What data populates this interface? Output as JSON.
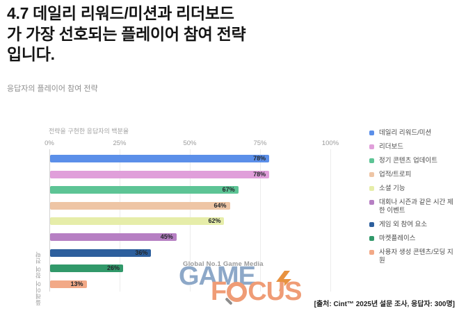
{
  "header": {
    "title_lines": [
      "4.7 데일리 리워드/미션과 리더보드",
      "가 가장 선호되는 플레이어 참여 전략",
      "입니다."
    ],
    "subtitle": "응답자의 플레이어 참여 전략"
  },
  "chart_data": {
    "type": "bar",
    "orientation": "horizontal",
    "title": "응답자의 플레이어 참여 전략",
    "xlabel": "전략을 구현한 응답자의 백분율",
    "ylabel": "플레이어 참여 전략",
    "xlim": [
      0,
      100
    ],
    "x_ticks": [
      "0%",
      "25%",
      "50%",
      "75%",
      "100%"
    ],
    "grid": true,
    "legend_position": "right",
    "categories": [
      "데일리 리워드/미션",
      "리더보드",
      "정기 콘텐츠 업데이트",
      "업적/트로피",
      "소셜 기능",
      "대회나 시즌과 같은 시간 제한 이벤트",
      "게임 외 참여 요소",
      "마켓플레이스",
      "사용자 생성 콘텐츠/모딩 지원"
    ],
    "values": [
      78,
      78,
      67,
      64,
      62,
      45,
      36,
      26,
      13
    ],
    "value_labels": [
      "78%",
      "78%",
      "67%",
      "64%",
      "62%",
      "45%",
      "36%",
      "26%",
      "13%"
    ],
    "colors": [
      "#5b8fe9",
      "#e09fda",
      "#5dc495",
      "#eec5a5",
      "#e6eda9",
      "#b67fc3",
      "#2d5f9d",
      "#31996a",
      "#f2a987"
    ]
  },
  "watermark": {
    "tagline": "Global No.1 Game Media",
    "word1": "GAME",
    "word2_pre": "F",
    "word2_post": "CUS",
    "bolt_color": "#e8923f"
  },
  "source": "[출처: Cint™ 2025년 설문 조사, 응답자: 300명]"
}
